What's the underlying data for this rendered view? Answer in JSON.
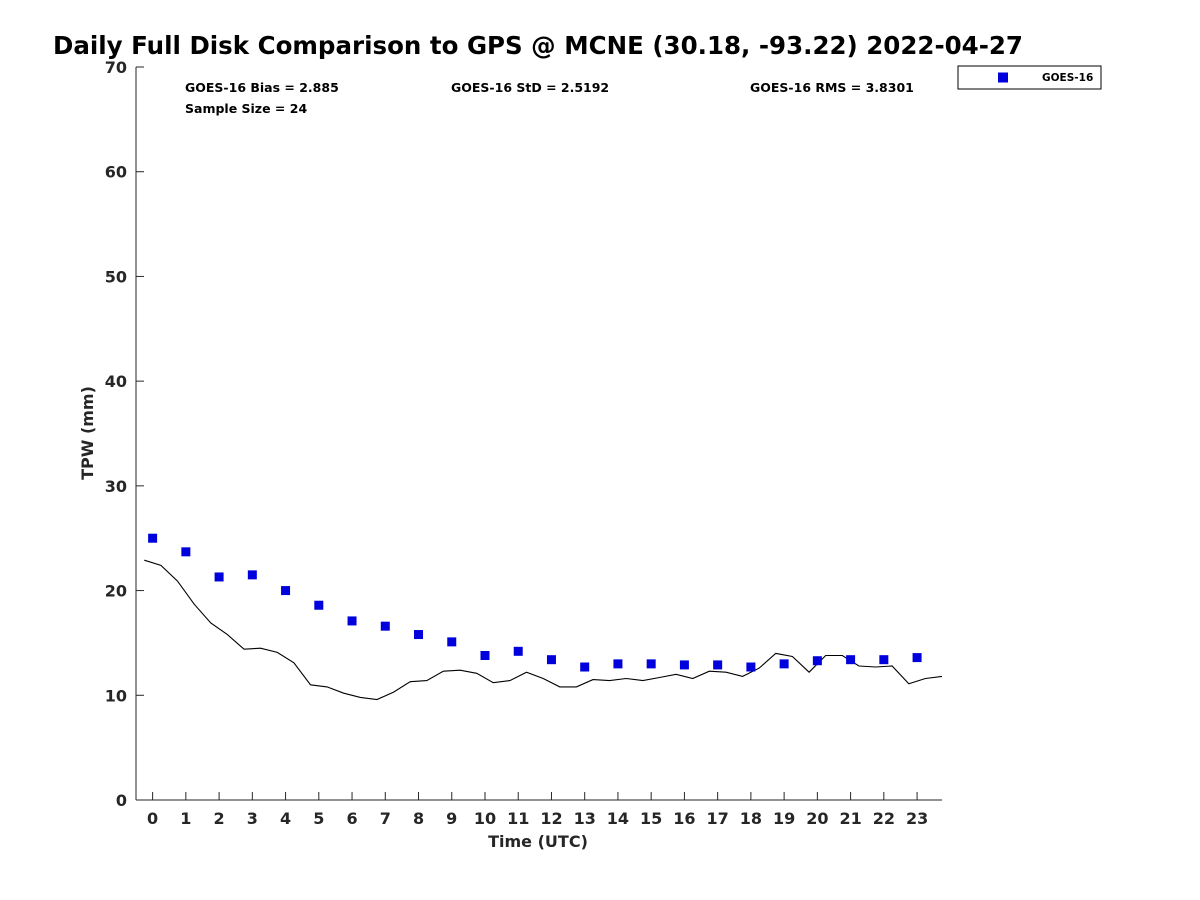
{
  "chart_data": {
    "type": "scatter",
    "title": "Daily Full Disk Comparison to GPS @ MCNE (30.18, -93.22) 2022-04-27",
    "xlabel": "Time (UTC)",
    "ylabel": "TPW (mm)",
    "xlim": [
      -0.5,
      23.75
    ],
    "ylim": [
      0,
      70
    ],
    "x_ticks": [
      0,
      1,
      2,
      3,
      4,
      5,
      6,
      7,
      8,
      9,
      10,
      11,
      12,
      13,
      14,
      15,
      16,
      17,
      18,
      19,
      20,
      21,
      22,
      23
    ],
    "y_ticks": [
      0,
      10,
      20,
      30,
      40,
      50,
      60,
      70
    ],
    "grid": false,
    "legend_position": "top-right outside",
    "stats": {
      "bias": "GOES-16 Bias = 2.885",
      "std": "GOES-16 StD = 2.5192",
      "rms": "GOES-16 RMS = 3.8301",
      "sample": "Sample Size = 24"
    },
    "series": [
      {
        "name": "GOES-16",
        "kind": "scatter",
        "marker": "square",
        "color": "#0000dd",
        "x": [
          0,
          1,
          2,
          3,
          4,
          5,
          6,
          7,
          8,
          9,
          10,
          11,
          12,
          13,
          14,
          15,
          16,
          17,
          18,
          19,
          20,
          21,
          22,
          23
        ],
        "y": [
          25.0,
          23.7,
          21.3,
          21.5,
          20.0,
          18.6,
          17.1,
          16.6,
          15.8,
          15.1,
          13.8,
          14.2,
          13.4,
          12.7,
          13.0,
          13.0,
          12.9,
          12.9,
          12.7,
          13.0,
          13.3,
          13.4,
          13.4,
          13.6
        ]
      },
      {
        "kind": "line",
        "color": "#000000",
        "x": [
          -0.25,
          0.25,
          0.75,
          1.25,
          1.75,
          2.25,
          2.75,
          3.25,
          3.75,
          4.25,
          4.75,
          5.25,
          5.75,
          6.25,
          6.75,
          7.25,
          7.75,
          8.25,
          8.75,
          9.25,
          9.75,
          10.25,
          10.75,
          11.25,
          11.75,
          12.25,
          12.75,
          13.25,
          13.75,
          14.25,
          14.75,
          15.25,
          15.75,
          16.25,
          16.75,
          17.25,
          17.75,
          18.25,
          18.75,
          19.25,
          19.75,
          20.25,
          20.75,
          21.25,
          21.75,
          22.25,
          22.75,
          23.25,
          23.75
        ],
        "y": [
          22.9,
          22.4,
          20.9,
          18.7,
          16.9,
          15.8,
          14.4,
          14.5,
          14.1,
          13.1,
          11.0,
          10.8,
          10.2,
          9.8,
          9.6,
          10.3,
          11.3,
          11.4,
          12.3,
          12.4,
          12.1,
          11.2,
          11.4,
          12.2,
          11.6,
          10.8,
          10.8,
          11.5,
          11.4,
          11.6,
          11.4,
          11.7,
          12.0,
          11.6,
          12.3,
          12.2,
          11.8,
          12.6,
          14.0,
          13.7,
          12.2,
          13.8,
          13.8,
          12.8,
          12.7,
          12.8,
          11.1,
          11.6,
          11.8
        ]
      }
    ]
  }
}
